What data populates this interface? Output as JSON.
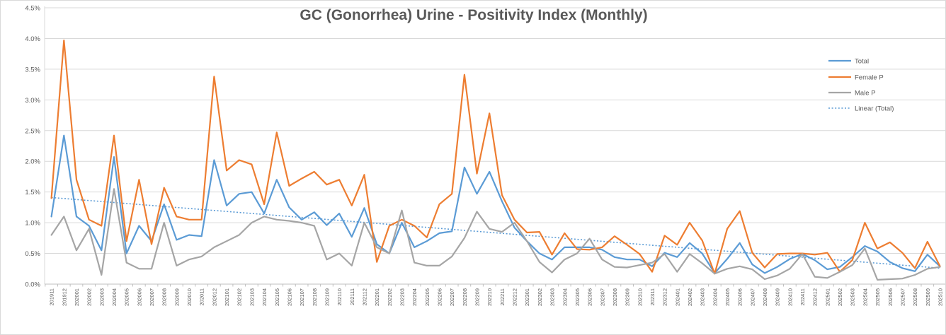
{
  "chart_data": {
    "type": "line",
    "title": "GC (Gonorrhea) Urine - Positivity Index (Monthly)",
    "xlabel": "",
    "ylabel": "",
    "ylim": [
      0,
      4.5
    ],
    "y_tick_step": 0.5,
    "y_ticks": [
      "0.0%",
      "0.5%",
      "1.0%",
      "1.5%",
      "2.0%",
      "2.5%",
      "3.0%",
      "3.5%",
      "4.0%",
      "4.5%"
    ],
    "grid": true,
    "legend_position": "top-right-inside",
    "categories": [
      "201911",
      "201912",
      "202001",
      "202002",
      "202003",
      "202004",
      "202005",
      "202006",
      "202007",
      "202008",
      "202009",
      "202010",
      "202011",
      "202012",
      "202101",
      "202102",
      "202103",
      "202104",
      "202105",
      "202106",
      "202107",
      "202108",
      "202109",
      "202110",
      "202111",
      "202112",
      "202201",
      "202202",
      "202203",
      "202204",
      "202205",
      "202206",
      "202207",
      "202208",
      "202209",
      "202210",
      "202211",
      "202212",
      "202301",
      "202302",
      "202303",
      "202304",
      "202305",
      "202306",
      "202307",
      "202308",
      "202309",
      "202310",
      "202311",
      "202312",
      "202401",
      "202402",
      "202403",
      "202404",
      "202405",
      "202406",
      "202407",
      "202408",
      "202409",
      "202410",
      "202411",
      "202412",
      "202501",
      "202502",
      "202503",
      "202504",
      "202505",
      "202506",
      "202507",
      "202508",
      "202509",
      "202510"
    ],
    "series": [
      {
        "name": "Total",
        "color": "#5B9BD5",
        "values": [
          1.1,
          2.42,
          1.1,
          0.95,
          0.55,
          2.07,
          0.5,
          0.95,
          0.7,
          1.3,
          0.72,
          0.8,
          0.78,
          2.02,
          1.28,
          1.47,
          1.5,
          1.15,
          1.7,
          1.25,
          1.05,
          1.17,
          0.96,
          1.15,
          0.77,
          1.24,
          0.65,
          0.5,
          1.0,
          0.6,
          0.7,
          0.83,
          0.86,
          1.9,
          1.47,
          1.83,
          1.35,
          0.92,
          0.7,
          0.5,
          0.4,
          0.6,
          0.6,
          0.6,
          0.56,
          0.44,
          0.4,
          0.4,
          0.29,
          0.51,
          0.44,
          0.67,
          0.5,
          0.18,
          0.41,
          0.67,
          0.32,
          0.18,
          0.28,
          0.41,
          0.49,
          0.39,
          0.24,
          0.28,
          0.44,
          0.62,
          0.53,
          0.36,
          0.26,
          0.21,
          0.48,
          0.29
        ]
      },
      {
        "name": "Female P",
        "color": "#ED7D31",
        "values": [
          1.4,
          3.97,
          1.7,
          1.05,
          0.95,
          2.42,
          0.7,
          1.7,
          0.65,
          1.57,
          1.1,
          1.05,
          1.05,
          3.38,
          1.85,
          2.02,
          1.95,
          1.3,
          2.47,
          1.6,
          1.72,
          1.83,
          1.62,
          1.7,
          1.28,
          1.78,
          0.36,
          0.95,
          1.05,
          0.95,
          0.76,
          1.3,
          1.47,
          3.41,
          1.8,
          2.78,
          1.45,
          1.05,
          0.84,
          0.85,
          0.48,
          0.83,
          0.57,
          0.56,
          0.6,
          0.78,
          0.64,
          0.49,
          0.2,
          0.79,
          0.64,
          1.0,
          0.71,
          0.17,
          0.9,
          1.19,
          0.51,
          0.27,
          0.49,
          0.5,
          0.5,
          0.48,
          0.51,
          0.2,
          0.39,
          1.0,
          0.58,
          0.68,
          0.51,
          0.26,
          0.69,
          0.29
        ]
      },
      {
        "name": "Male P",
        "color": "#A5A5A5",
        "values": [
          0.8,
          1.1,
          0.55,
          0.9,
          0.15,
          1.55,
          0.35,
          0.25,
          0.25,
          1.0,
          0.3,
          0.4,
          0.45,
          0.6,
          0.7,
          0.8,
          1.0,
          1.1,
          1.05,
          1.03,
          1.0,
          0.95,
          0.4,
          0.5,
          0.3,
          1.0,
          0.6,
          0.5,
          1.2,
          0.35,
          0.3,
          0.3,
          0.45,
          0.75,
          1.18,
          0.9,
          0.85,
          1.0,
          0.7,
          0.36,
          0.19,
          0.4,
          0.5,
          0.74,
          0.4,
          0.28,
          0.27,
          0.31,
          0.35,
          0.49,
          0.2,
          0.49,
          0.34,
          0.17,
          0.25,
          0.29,
          0.24,
          0.08,
          0.14,
          0.25,
          0.49,
          0.12,
          0.1,
          0.2,
          0.31,
          0.58,
          0.07,
          0.08,
          0.09,
          0.15,
          0.25,
          0.28
        ]
      }
    ],
    "trendline": {
      "name": "Linear (Total)",
      "color": "#5B9BD5",
      "style": "dotted",
      "start_value": 1.41,
      "end_value": 0.26
    },
    "legend": [
      "Total",
      "Female P",
      "Male P",
      "Linear (Total)"
    ]
  },
  "colors": {
    "title_text": "#595959",
    "axis_text": "#595959",
    "gridline": "#d9d9d9",
    "axis_line": "#bfbfbf",
    "border": "#d9d9d9",
    "background": "#ffffff"
  }
}
